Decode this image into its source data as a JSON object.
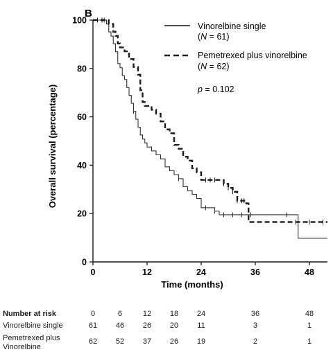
{
  "panel_label": "B",
  "colors": {
    "vinorelbine_single": "#333333",
    "pemetrexed_plus_vinorelbine": "#1a1a1a"
  },
  "chart_data": {
    "type": "line",
    "subtype": "kaplan-meier",
    "xlabel": "Time (months)",
    "ylabel": "Overall survival (percentage)",
    "xlim": [
      0,
      52
    ],
    "ylim": [
      0,
      100
    ],
    "xticks": [
      0,
      12,
      24,
      36,
      48
    ],
    "yticks": [
      0,
      20,
      40,
      60,
      80,
      100
    ],
    "grid": false,
    "legend_position": "top-right",
    "p_value_text": "p = 0.102",
    "series": [
      {
        "name": "Vinorelbine single",
        "n_label": "(N = 61)",
        "line_style": "solid",
        "steps": [
          [
            0,
            100
          ],
          [
            2.5,
            100
          ],
          [
            3,
            98.4
          ],
          [
            3.5,
            95.1
          ],
          [
            4,
            93.4
          ],
          [
            4.5,
            90.2
          ],
          [
            5,
            86.9
          ],
          [
            5.5,
            82.0
          ],
          [
            6,
            80.3
          ],
          [
            6.5,
            77.0
          ],
          [
            7,
            75.4
          ],
          [
            7.5,
            72.1
          ],
          [
            8,
            68.9
          ],
          [
            8.5,
            65.6
          ],
          [
            9,
            62.3
          ],
          [
            9.5,
            59.0
          ],
          [
            10,
            55.7
          ],
          [
            10.5,
            52.5
          ],
          [
            11,
            50.8
          ],
          [
            11.5,
            49.2
          ],
          [
            12,
            47.5
          ],
          [
            13,
            45.9
          ],
          [
            14,
            44.3
          ],
          [
            15,
            42.6
          ],
          [
            16,
            39.3
          ],
          [
            17,
            37.7
          ],
          [
            18,
            36.1
          ],
          [
            19,
            34.4
          ],
          [
            20,
            31.1
          ],
          [
            21,
            29.5
          ],
          [
            22,
            27.9
          ],
          [
            23,
            26.2
          ],
          [
            24,
            22.4
          ],
          [
            26,
            22.4
          ],
          [
            27,
            21.0
          ],
          [
            28,
            19.5
          ],
          [
            34,
            19.5
          ],
          [
            35,
            19.5
          ],
          [
            45,
            19.5
          ],
          [
            45.5,
            9.8
          ],
          [
            52,
            9.8
          ]
        ],
        "censor_times": [
          2.5,
          9,
          19,
          25,
          27,
          29,
          31,
          33,
          35,
          43
        ]
      },
      {
        "name": "Pemetrexed plus vinorelbine",
        "n_label": "(N = 62)",
        "line_style": "dashed",
        "steps": [
          [
            0,
            100
          ],
          [
            3,
            100
          ],
          [
            3.5,
            98.4
          ],
          [
            4.5,
            95.2
          ],
          [
            5,
            93.5
          ],
          [
            5.5,
            90.3
          ],
          [
            6,
            88.7
          ],
          [
            7,
            87.1
          ],
          [
            8,
            83.9
          ],
          [
            9,
            80.6
          ],
          [
            10,
            77.4
          ],
          [
            10.5,
            71.0
          ],
          [
            11,
            66.1
          ],
          [
            11.5,
            64.5
          ],
          [
            13,
            62.9
          ],
          [
            14,
            61.3
          ],
          [
            15,
            58.1
          ],
          [
            16,
            54.8
          ],
          [
            17,
            53.2
          ],
          [
            18,
            48.4
          ],
          [
            19,
            46.8
          ],
          [
            20,
            43.5
          ],
          [
            21,
            41.9
          ],
          [
            22,
            38.7
          ],
          [
            23,
            37.1
          ],
          [
            24,
            33.9
          ],
          [
            25,
            33.9
          ],
          [
            28,
            33.9
          ],
          [
            29,
            32.3
          ],
          [
            30,
            30.6
          ],
          [
            31,
            29.0
          ],
          [
            32,
            25.3
          ],
          [
            34,
            24.2
          ],
          [
            34.5,
            16.5
          ],
          [
            52,
            16.5
          ]
        ],
        "censor_times": [
          1,
          2,
          25,
          26,
          27,
          29,
          30,
          31,
          32,
          33,
          33.5,
          45,
          48,
          51
        ]
      }
    ],
    "number_at_risk": {
      "header": "Number at risk",
      "times": [
        "0",
        "6",
        "12",
        "18",
        "24",
        "36",
        "48"
      ],
      "rows": [
        {
          "label": "Vinorelbine single",
          "values": [
            "61",
            "46",
            "26",
            "20",
            "11",
            "3",
            "1"
          ]
        },
        {
          "label": "Pemetrexed plus Vinorelbine",
          "values": [
            "62",
            "52",
            "37",
            "26",
            "19",
            "2",
            "1"
          ]
        }
      ]
    }
  }
}
